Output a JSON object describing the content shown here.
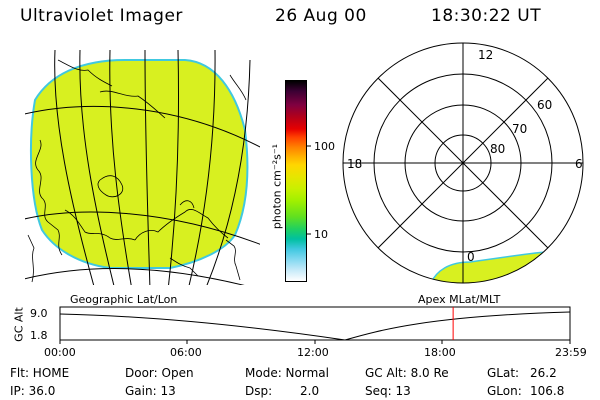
{
  "header": {
    "instrument": "Ultraviolet Imager",
    "date": "26 Aug 00",
    "time": "18:30:22 UT"
  },
  "colorbar": {
    "unit_label": "photon cm⁻²s⁻¹",
    "tick_high": "100",
    "tick_low": "10",
    "colors": [
      "#000000",
      "#3a0033",
      "#800040",
      "#b3001a",
      "#e60000",
      "#ff4000",
      "#ff8000",
      "#ffb300",
      "#ffd600",
      "#e6e600",
      "#c8f000",
      "#a0f000",
      "#60e020",
      "#20d060",
      "#00c0a0",
      "#40c8e0",
      "#80d8f0",
      "#c0e8f8",
      "#ffffff"
    ]
  },
  "polar_plot": {
    "mlt_top": "12",
    "mlt_left": "18",
    "mlt_right": "6",
    "mlt_bottom": "0",
    "lat_60": "60",
    "lat_70": "70",
    "lat_80": "80",
    "aurora_color": "#d8f020"
  },
  "geo_map": {
    "fill_color": "#d8f020",
    "edge_color": "#40c8e0"
  },
  "panel_labels": {
    "left": "Geographic Lat/Lon",
    "right": "Apex MLat/MLT"
  },
  "altitude_chart": {
    "ylabel": "GC Alt",
    "ytick_high": "9.0",
    "ytick_low": "1.8",
    "xticks": [
      "00:00",
      "06:00",
      "12:00",
      "18:00",
      "23:59"
    ],
    "marker_time": "18:30",
    "marker_color": "#ff0000"
  },
  "status": {
    "flt": "Flt: HOME",
    "ip": "IP: 36.0",
    "door": "Door: Open",
    "gain": "Gain: 13",
    "mode": "Mode: Normal",
    "dsp_label": "Dsp:",
    "dsp_value": "2.0",
    "gc_alt": "GC Alt: 8.0 Re",
    "seq": "Seq: 13",
    "glat_label": "GLat:",
    "glat_value": "26.2",
    "glon_label": "GLon:",
    "glon_value": "106.8"
  }
}
